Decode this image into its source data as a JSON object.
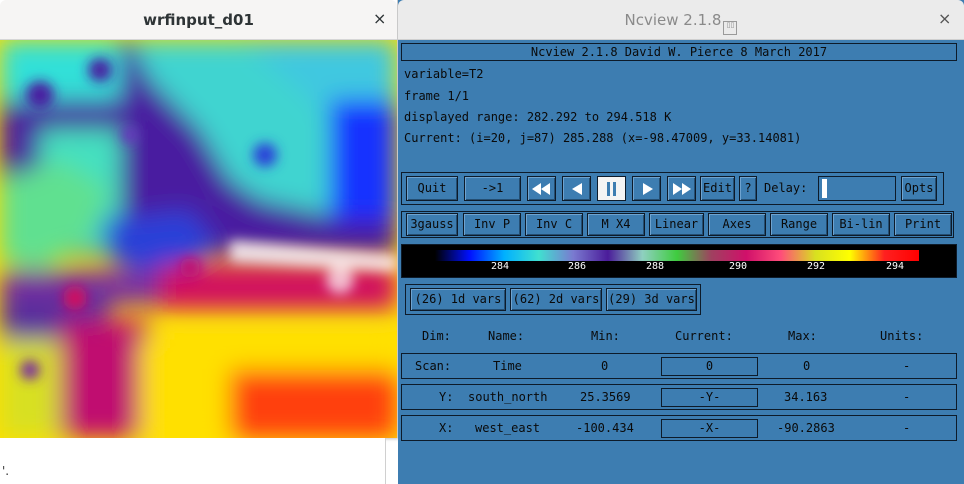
{
  "left_window": {
    "title": "wrfinput_d01",
    "close_glyph": "×",
    "stray_text": "'."
  },
  "right_window": {
    "title": "Ncview 2.1.8",
    "title_glyph": "▯▯",
    "close_glyph": "×",
    "header": "Ncview 2.1.8 David W. Pierce  8 March 2017",
    "info": {
      "variable": "variable=T2",
      "frame": "frame 1/1",
      "range": "displayed range: 282.292 to 294.518 K",
      "current": "Current: (i=20, j=87) 285.288 (x=-98.47009, y=33.14081)"
    },
    "controls": {
      "quit": "Quit",
      "to_one": "->1",
      "edit": "Edit",
      "help": "?",
      "delay_label": "Delay:",
      "opts": "Opts",
      "delay_level": 0.0,
      "icons": [
        "fast-rewind-icon",
        "step-back-icon",
        "pause-icon",
        "step-forward-icon",
        "fast-forward-icon"
      ]
    },
    "options": [
      "3gauss",
      "Inv P",
      "Inv C",
      "M X4",
      "Linear",
      "Axes",
      "Range",
      "Bi-lin",
      "Print"
    ],
    "colorbar": {
      "ticks": [
        "284",
        "286",
        "288",
        "290",
        "292",
        "294"
      ],
      "colors": [
        "#000000",
        "#0010ff",
        "#00b0ff",
        "#40e0d0",
        "#7a7ad0",
        "#4b1c9a",
        "#8fd0c0",
        "#3fcc3f",
        "#a04060",
        "#d0106a",
        "#ff4d7a",
        "#d8e020",
        "#ffff00",
        "#ff2020",
        "#ff0000"
      ]
    },
    "var_buttons": [
      "(26) 1d vars",
      "(62) 2d vars",
      "(29) 3d vars"
    ],
    "dim_header": {
      "dim": "Dim:",
      "name": "Name:",
      "min": "Min:",
      "current": "Current:",
      "max": "Max:",
      "units": "Units:"
    },
    "dims": [
      {
        "dim": "Scan:",
        "name": "Time",
        "min": "0",
        "current": "0",
        "max": "0",
        "units": "-"
      },
      {
        "dim": "Y:",
        "name": "south_north",
        "min": "25.3569",
        "current": "-Y-",
        "max": "34.163",
        "units": "-"
      },
      {
        "dim": "X:",
        "name": "west_east",
        "min": "-100.434",
        "current": "-X-",
        "max": "-90.2863",
        "units": "-"
      }
    ]
  }
}
